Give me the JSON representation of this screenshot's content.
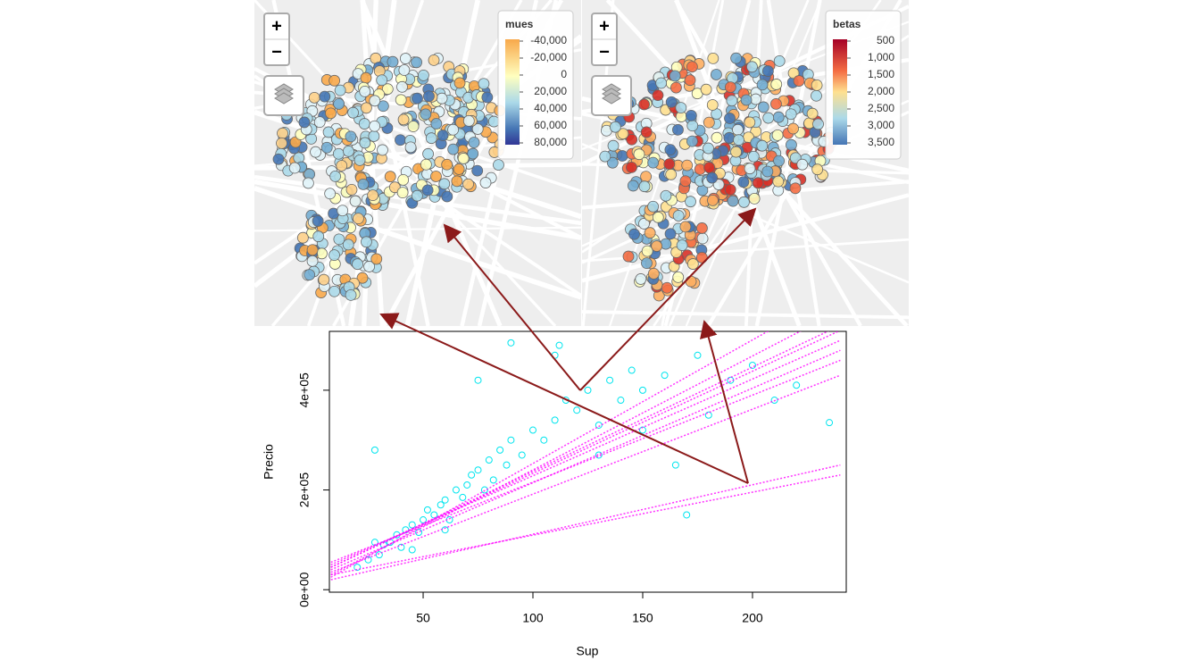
{
  "maps": [
    {
      "zoom_in": "+",
      "zoom_out": "−",
      "legend_title": "mues",
      "legend_labels": [
        "-40,000",
        "-20,000",
        "0",
        "20,000",
        "40,000",
        "60,000",
        "80,000"
      ]
    },
    {
      "zoom_in": "+",
      "zoom_out": "−",
      "legend_title": "betas",
      "legend_labels": [
        "500",
        "1,000",
        "1,500",
        "2,000",
        "2,500",
        "3,000",
        "3,500"
      ]
    }
  ],
  "chart_data": {
    "type": "scatter",
    "x_label": "Sup",
    "y_label": "Precio",
    "xlim": [
      7.3,
      242.7
    ],
    "ylim": [
      -5000,
      518000
    ],
    "xticks": [
      50,
      100,
      150,
      200
    ],
    "yticks": [
      {
        "value": 0,
        "label": "0e+00"
      },
      {
        "value": 200000,
        "label": "2e+05"
      },
      {
        "value": 400000,
        "label": "4e+05"
      }
    ],
    "series": [
      {
        "color": "#00e5ee",
        "x": [
          20,
          25,
          28,
          30,
          32,
          35,
          38,
          40,
          42,
          45,
          48,
          50,
          52,
          55,
          58,
          60,
          62,
          65,
          68,
          70,
          72,
          75,
          78,
          80,
          82,
          85,
          88,
          90,
          95,
          100,
          105,
          110,
          112,
          115,
          120,
          125,
          130,
          135,
          140,
          145,
          150,
          160,
          165,
          170,
          175,
          180,
          190,
          200,
          210,
          220,
          235,
          28,
          45,
          60,
          75,
          90,
          110,
          130,
          150
        ],
        "values": [
          45000,
          60000,
          280000,
          70000,
          90000,
          95000,
          110000,
          85000,
          120000,
          130000,
          115000,
          140000,
          160000,
          150000,
          170000,
          180000,
          140000,
          200000,
          185000,
          210000,
          230000,
          240000,
          200000,
          260000,
          220000,
          280000,
          250000,
          300000,
          270000,
          320000,
          300000,
          340000,
          490000,
          380000,
          360000,
          400000,
          330000,
          420000,
          380000,
          440000,
          400000,
          430000,
          250000,
          150000,
          470000,
          350000,
          420000,
          450000,
          380000,
          410000,
          335000,
          95000,
          80000,
          120000,
          420000,
          495000,
          470000,
          270000,
          320000
        ]
      }
    ],
    "lines": [
      {
        "color": "#ff00ff",
        "x": [
          8,
          240
        ],
        "values": [
          30000,
          560000
        ]
      },
      {
        "color": "#ff00ff",
        "x": [
          8,
          240
        ],
        "values": [
          45000,
          530000
        ]
      },
      {
        "color": "#ff00ff",
        "x": [
          8,
          240
        ],
        "values": [
          50000,
          500000
        ]
      },
      {
        "color": "#ff00ff",
        "x": [
          8,
          240
        ],
        "values": [
          40000,
          480000
        ]
      },
      {
        "color": "#ff00ff",
        "x": [
          8,
          240
        ],
        "values": [
          55000,
          460000
        ]
      },
      {
        "color": "#ff00ff",
        "x": [
          8,
          240
        ],
        "values": [
          25000,
          600000
        ]
      },
      {
        "color": "#ff00ff",
        "x": [
          8,
          240
        ],
        "values": [
          35000,
          430000
        ]
      },
      {
        "color": "#ff00ff",
        "x": [
          8,
          240
        ],
        "values": [
          20000,
          250000
        ]
      },
      {
        "color": "#ff00ff",
        "x": [
          8,
          240
        ],
        "values": [
          30000,
          230000
        ]
      },
      {
        "color": "#ff00ff",
        "x": [
          8,
          240
        ],
        "values": [
          45000,
          520000
        ]
      }
    ]
  }
}
